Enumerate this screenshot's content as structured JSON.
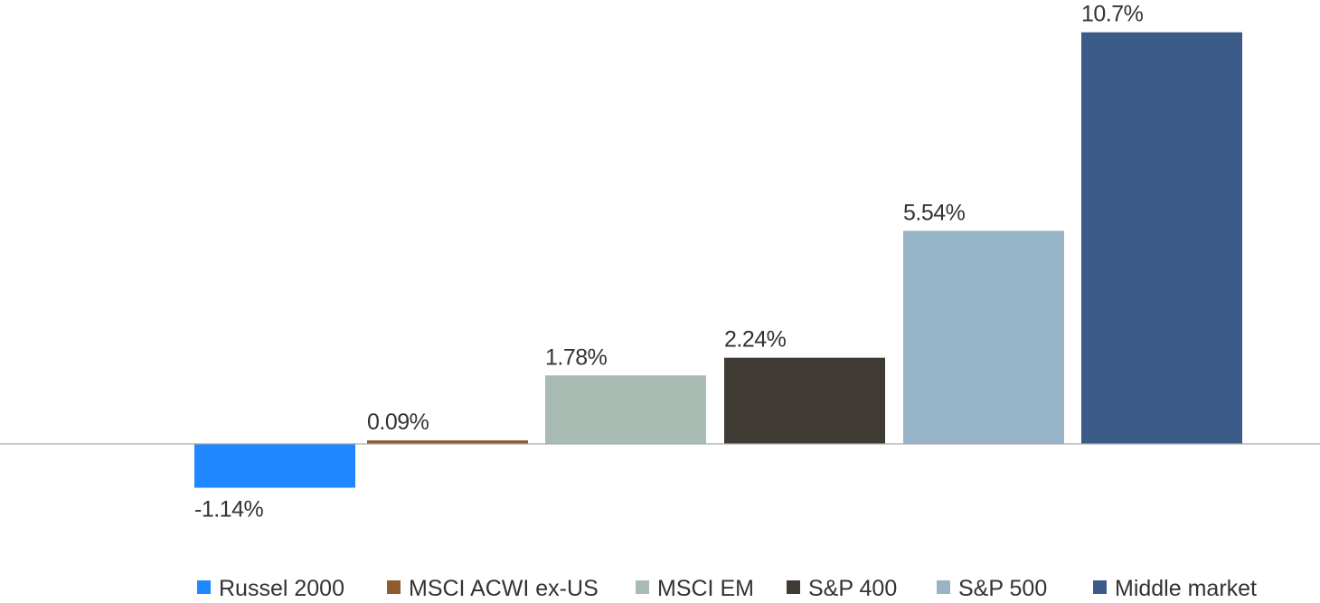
{
  "chart_data": {
    "type": "bar",
    "categories": [
      "Russel 2000",
      "MSCI ACWI ex-US",
      "MSCI EM",
      "S&P 400",
      "S&P 500",
      "Middle market"
    ],
    "values": [
      -1.14,
      0.09,
      1.78,
      2.24,
      5.54,
      10.7
    ],
    "data_labels": [
      "-1.14%",
      "0.09%",
      "1.78%",
      "2.24%",
      "5.54%",
      "10.7%"
    ],
    "colors": [
      "#1f87ff",
      "#8e5a2e",
      "#a8bcb3",
      "#3f3a33",
      "#97b4c8",
      "#3c5a88"
    ],
    "legend": {
      "position": "bottom",
      "entries": [
        "Russel 2000",
        "MSCI ACWI ex-US",
        "MSCI EM",
        "S&P 400",
        "S&P 500",
        "Middle market"
      ]
    },
    "title": "",
    "xlabel": "",
    "ylabel": "",
    "ylim": [
      -1.14,
      10.7
    ],
    "grid": false,
    "baseline_color": "#a6a6a6"
  }
}
